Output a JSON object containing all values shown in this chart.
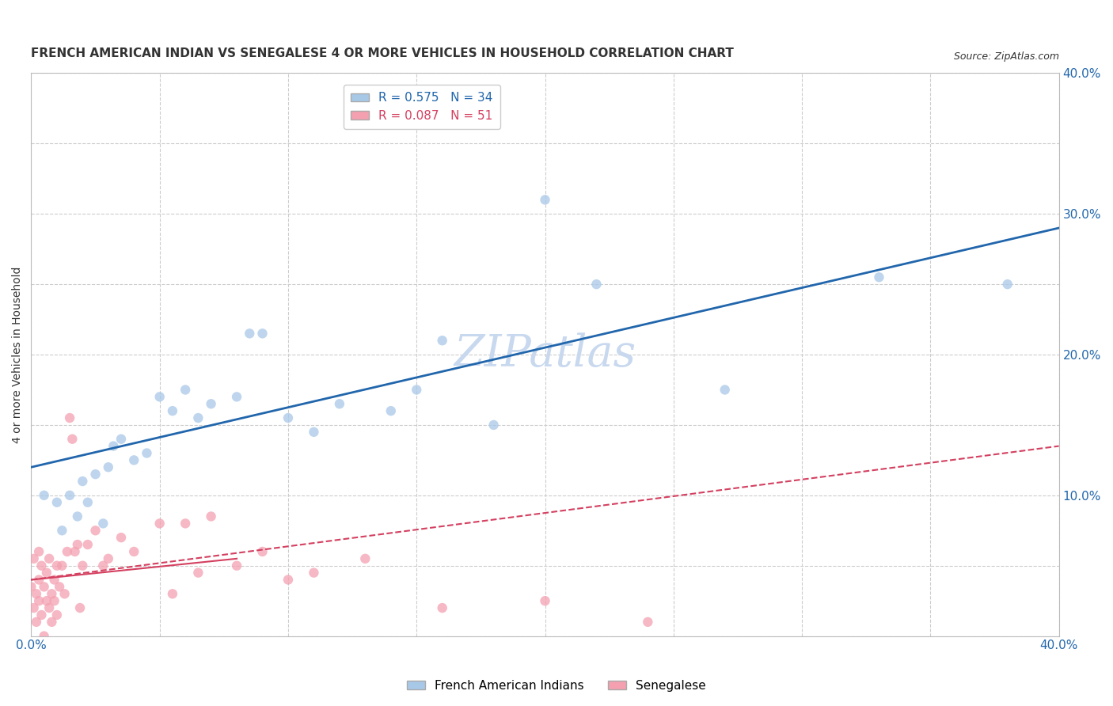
{
  "title": "FRENCH AMERICAN INDIAN VS SENEGALESE 4 OR MORE VEHICLES IN HOUSEHOLD CORRELATION CHART",
  "source": "Source: ZipAtlas.com",
  "ylabel": "4 or more Vehicles in Household",
  "xlim": [
    0.0,
    0.4
  ],
  "ylim": [
    0.0,
    0.4
  ],
  "xticks": [
    0.0,
    0.05,
    0.1,
    0.15,
    0.2,
    0.25,
    0.3,
    0.35,
    0.4
  ],
  "yticks": [
    0.0,
    0.05,
    0.1,
    0.15,
    0.2,
    0.25,
    0.3,
    0.35,
    0.4
  ],
  "blue_R": 0.575,
  "blue_N": 34,
  "pink_R": 0.087,
  "pink_N": 51,
  "blue_color": "#a8c8e8",
  "pink_color": "#f4a0b0",
  "blue_line_color": "#2166ac",
  "pink_line_color": "#d44060",
  "watermark": "ZIPatlas",
  "blue_scatter_x": [
    0.005,
    0.01,
    0.012,
    0.015,
    0.018,
    0.02,
    0.022,
    0.025,
    0.028,
    0.03,
    0.032,
    0.035,
    0.04,
    0.045,
    0.05,
    0.055,
    0.06,
    0.065,
    0.07,
    0.08,
    0.085,
    0.09,
    0.1,
    0.11,
    0.12,
    0.14,
    0.15,
    0.16,
    0.18,
    0.2,
    0.22,
    0.27,
    0.33,
    0.38
  ],
  "blue_scatter_y": [
    0.1,
    0.095,
    0.075,
    0.1,
    0.085,
    0.11,
    0.095,
    0.115,
    0.08,
    0.12,
    0.135,
    0.14,
    0.125,
    0.13,
    0.17,
    0.16,
    0.175,
    0.155,
    0.165,
    0.17,
    0.215,
    0.215,
    0.155,
    0.145,
    0.165,
    0.16,
    0.175,
    0.21,
    0.15,
    0.31,
    0.25,
    0.175,
    0.255,
    0.25
  ],
  "pink_scatter_x": [
    0.0,
    0.001,
    0.001,
    0.002,
    0.002,
    0.003,
    0.003,
    0.003,
    0.004,
    0.004,
    0.005,
    0.005,
    0.006,
    0.006,
    0.007,
    0.007,
    0.008,
    0.008,
    0.009,
    0.009,
    0.01,
    0.01,
    0.011,
    0.012,
    0.013,
    0.014,
    0.015,
    0.016,
    0.017,
    0.018,
    0.019,
    0.02,
    0.022,
    0.025,
    0.028,
    0.03,
    0.035,
    0.04,
    0.05,
    0.055,
    0.06,
    0.065,
    0.07,
    0.08,
    0.09,
    0.1,
    0.11,
    0.13,
    0.16,
    0.2,
    0.24
  ],
  "pink_scatter_y": [
    0.035,
    0.02,
    0.055,
    0.03,
    0.01,
    0.04,
    0.025,
    0.06,
    0.015,
    0.05,
    0.035,
    0.0,
    0.025,
    0.045,
    0.02,
    0.055,
    0.03,
    0.01,
    0.04,
    0.025,
    0.05,
    0.015,
    0.035,
    0.05,
    0.03,
    0.06,
    0.155,
    0.14,
    0.06,
    0.065,
    0.02,
    0.05,
    0.065,
    0.075,
    0.05,
    0.055,
    0.07,
    0.06,
    0.08,
    0.03,
    0.08,
    0.045,
    0.085,
    0.05,
    0.06,
    0.04,
    0.045,
    0.055,
    0.02,
    0.025,
    0.01
  ],
  "background_color": "#ffffff",
  "grid_color": "#cccccc",
  "title_fontsize": 11,
  "source_fontsize": 9,
  "legend_fontsize": 11,
  "axis_label_fontsize": 10,
  "tick_fontsize": 11,
  "watermark_fontsize": 40,
  "watermark_color": "#c8d8ee",
  "marker_size": 80,
  "blue_line_y0": 0.12,
  "blue_line_y1": 0.29,
  "pink_line_y0": 0.04,
  "pink_line_y1": 0.135
}
